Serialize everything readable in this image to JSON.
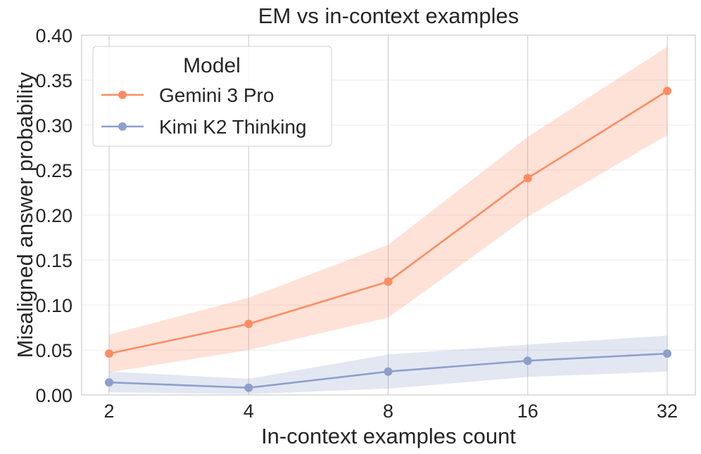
{
  "chart_data": {
    "type": "line",
    "title": "EM vs in-context examples",
    "xlabel": "In-context examples count",
    "ylabel": "Misaligned answer probability",
    "x": [
      2,
      4,
      8,
      16,
      32
    ],
    "x_tick_labels": [
      "2",
      "4",
      "8",
      "16",
      "32"
    ],
    "x_scale": "log2",
    "ylim": [
      0,
      0.4
    ],
    "y_ticks": [
      0,
      0.05,
      0.1,
      0.15,
      0.2,
      0.25,
      0.3,
      0.35,
      0.4
    ],
    "y_tick_labels": [
      "0.00",
      "0.05",
      "0.10",
      "0.15",
      "0.20",
      "0.25",
      "0.30",
      "0.35",
      "0.40"
    ],
    "grid": true,
    "legend": {
      "title": "Model",
      "placement": "top-left"
    },
    "series": [
      {
        "name": "Gemini 3 Pro",
        "color": "#fc8d62",
        "values": [
          0.046,
          0.079,
          0.126,
          0.241,
          0.338
        ],
        "ci_lower": [
          0.025,
          0.05,
          0.086,
          0.198,
          0.289
        ],
        "ci_upper": [
          0.067,
          0.108,
          0.167,
          0.287,
          0.387
        ]
      },
      {
        "name": "Kimi K2 Thinking",
        "color": "#8da0cb",
        "values": [
          0.014,
          0.008,
          0.026,
          0.038,
          0.046
        ],
        "ci_lower": [
          0.003,
          0.001,
          0.007,
          0.02,
          0.026
        ],
        "ci_upper": [
          0.026,
          0.018,
          0.045,
          0.056,
          0.066
        ]
      }
    ]
  }
}
